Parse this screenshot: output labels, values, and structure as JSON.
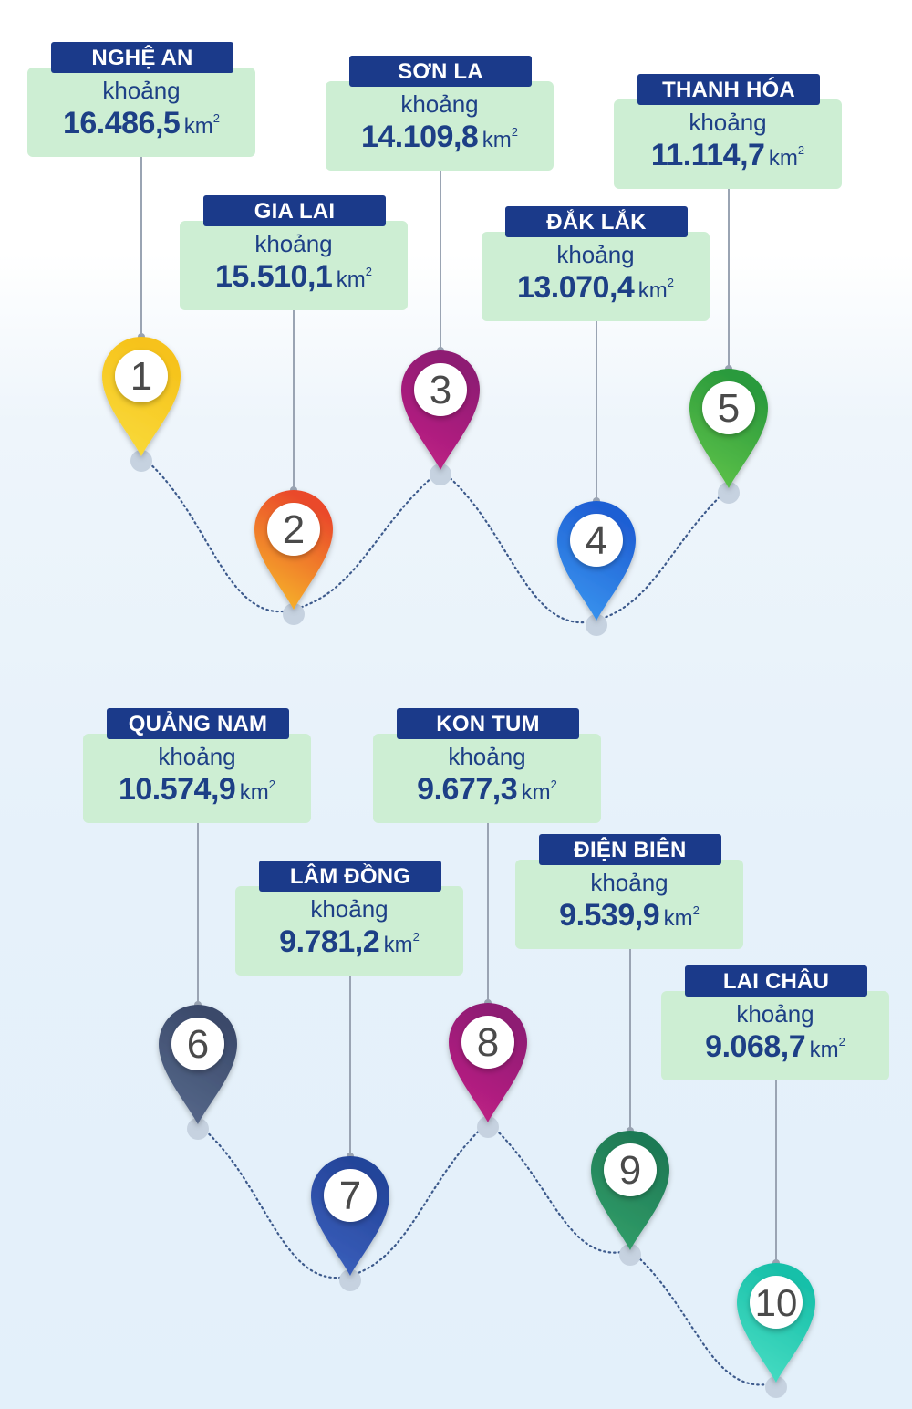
{
  "prefix": "khoảng",
  "unit": "km",
  "unit_sup": "2",
  "provinces": [
    {
      "rank": "1",
      "name": "NGHỆ AN",
      "area": "16.486,5",
      "color": "#f6c21b",
      "color2": "#f9dd3e"
    },
    {
      "rank": "2",
      "name": "GIA LAI",
      "area": "15.510,1",
      "color": "#ea4a2c",
      "color2": "#f8c22a"
    },
    {
      "rank": "3",
      "name": "SƠN LA",
      "area": "14.109,8",
      "color": "#8e1a73",
      "color2": "#c52287"
    },
    {
      "rank": "4",
      "name": "ĐẮK LẮK",
      "area": "13.070,4",
      "color": "#1f5fd4",
      "color2": "#3c9bf2"
    },
    {
      "rank": "5",
      "name": "THANH HÓA",
      "area": "11.114,7",
      "color": "#2a9a3c",
      "color2": "#64c74a"
    },
    {
      "rank": "6",
      "name": "QUẢNG NAM",
      "area": "10.574,9",
      "color": "#3b4a6b",
      "color2": "#5a6c8e"
    },
    {
      "rank": "7",
      "name": "LÂM ĐỒNG",
      "area": "9.781,2",
      "color": "#24449a",
      "color2": "#3d63c0"
    },
    {
      "rank": "8",
      "name": "KON TUM",
      "area": "9.677,3",
      "color": "#8e1a73",
      "color2": "#c52287"
    },
    {
      "rank": "9",
      "name": "ĐIỆN BIÊN",
      "area": "9.539,9",
      "color": "#1f7a55",
      "color2": "#34a36c"
    },
    {
      "rank": "10",
      "name": "LAI CHÂU",
      "area": "9.068,7",
      "color": "#18c0a9",
      "color2": "#4de0c6"
    }
  ]
}
